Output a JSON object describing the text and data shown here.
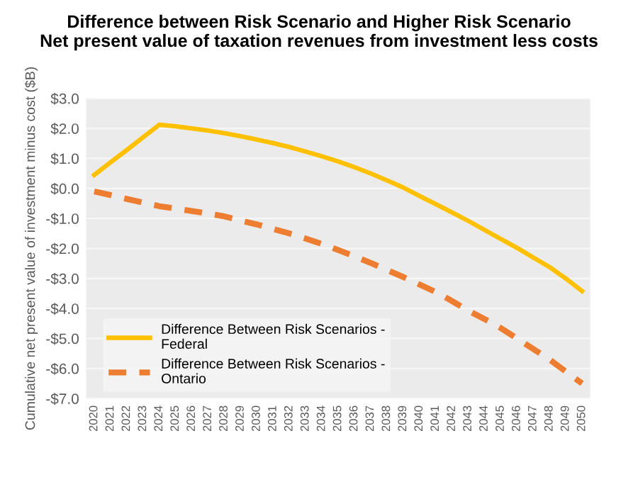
{
  "chart_data": {
    "type": "line",
    "title": "Difference between Risk Scenario and Higher Risk Scenario\nNet present value of taxation revenues from investment less costs",
    "ylabel": "Cumulative net present value of investment minus cost ($B)",
    "categories": [
      "2020",
      "2021",
      "2022",
      "2023",
      "2024",
      "2025",
      "2026",
      "2027",
      "2028",
      "2029",
      "2030",
      "2031",
      "2032",
      "2033",
      "2034",
      "2035",
      "2036",
      "2037",
      "2038",
      "2039",
      "2040",
      "2041",
      "2042",
      "2043",
      "2044",
      "2045",
      "2046",
      "2047",
      "2048",
      "2049",
      "2050"
    ],
    "series": [
      {
        "name": "Difference Between Risk Scenarios - Federal",
        "color": "#ffc000",
        "line_style": "solid",
        "values": [
          0.45,
          0.87,
          1.28,
          1.7,
          2.12,
          2.07,
          2.0,
          1.93,
          1.84,
          1.74,
          1.63,
          1.51,
          1.38,
          1.23,
          1.07,
          0.9,
          0.71,
          0.5,
          0.27,
          0.03,
          -0.25,
          -0.52,
          -0.8,
          -1.08,
          -1.38,
          -1.68,
          -1.98,
          -2.3,
          -2.62,
          -3.0,
          -3.42
        ]
      },
      {
        "name": "Difference Between Risk Scenarios - Ontario",
        "color": "#ed7d31",
        "line_style": "dashed",
        "values": [
          -0.1,
          -0.22,
          -0.35,
          -0.47,
          -0.59,
          -0.67,
          -0.75,
          -0.84,
          -0.93,
          -1.07,
          -1.2,
          -1.35,
          -1.5,
          -1.67,
          -1.85,
          -2.05,
          -2.26,
          -2.48,
          -2.72,
          -2.95,
          -3.2,
          -3.45,
          -3.75,
          -4.07,
          -4.35,
          -4.65,
          -5.0,
          -5.35,
          -5.7,
          -6.1,
          -6.5
        ]
      }
    ],
    "ylim": [
      -7,
      3
    ],
    "yticks": [
      {
        "value": 3,
        "label": "$3.0"
      },
      {
        "value": 2,
        "label": "$2.0"
      },
      {
        "value": 1,
        "label": "$1.0"
      },
      {
        "value": 0,
        "label": "$0.0"
      },
      {
        "value": -1,
        "label": "-$1.0"
      },
      {
        "value": -2,
        "label": "-$2.0"
      },
      {
        "value": -3,
        "label": "-$3.0"
      },
      {
        "value": -4,
        "label": "-$4.0"
      },
      {
        "value": -5,
        "label": "-$5.0"
      },
      {
        "value": -6,
        "label": "-$6.0"
      },
      {
        "value": -7,
        "label": "-$7.0"
      }
    ],
    "grid": "y",
    "legend": "bottom left",
    "marker": "none"
  }
}
